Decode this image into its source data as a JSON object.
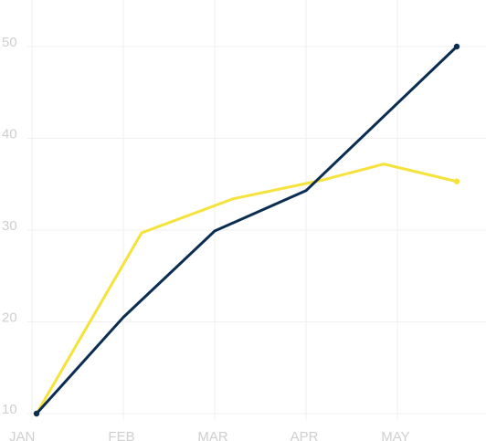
{
  "chart_data": {
    "type": "line",
    "title": "",
    "xlabel": "",
    "ylabel": "",
    "x_ticks": [
      "JAN",
      "FEB",
      "MAR",
      "APR",
      "MAY"
    ],
    "y_ticks": [
      "10",
      "20",
      "30",
      "40",
      "50"
    ],
    "ylim": [
      10,
      50
    ],
    "grid": true,
    "legend": "none",
    "series": [
      {
        "color": "#0b2d52",
        "points": [
          {
            "x": 0.05,
            "y": 10.0
          },
          {
            "x": 1.0,
            "y": 20.5
          },
          {
            "x": 2.0,
            "y": 29.9
          },
          {
            "x": 3.0,
            "y": 34.3
          },
          {
            "x": 4.65,
            "y": 50.0
          }
        ]
      },
      {
        "color": "#f5e23a",
        "points": [
          {
            "x": 0.05,
            "y": 10.0
          },
          {
            "x": 1.2,
            "y": 29.7
          },
          {
            "x": 2.2,
            "y": 33.4
          },
          {
            "x": 3.2,
            "y": 35.5
          },
          {
            "x": 3.85,
            "y": 37.2
          },
          {
            "x": 4.65,
            "y": 35.3
          }
        ]
      }
    ]
  }
}
